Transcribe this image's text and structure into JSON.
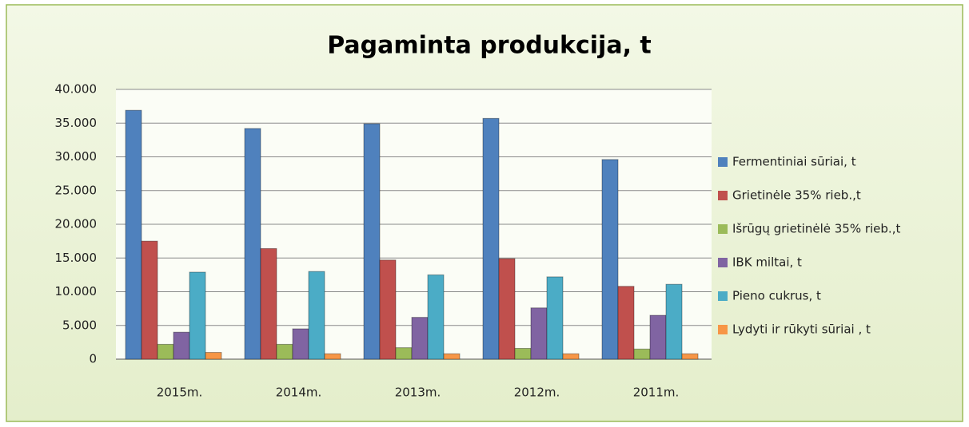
{
  "chart_data": {
    "type": "bar",
    "title": "Pagaminta produkcija, t",
    "categories": [
      "2015m.",
      "2014m.",
      "2013m.",
      "2012m.",
      "2011m."
    ],
    "series": [
      {
        "name": "Fermentiniai sūriai, t",
        "color": "#4f81bd",
        "values": [
          36900,
          34200,
          34900,
          35700,
          29600
        ]
      },
      {
        "name": "Grietinėle 35% rieb.,t",
        "color": "#c0504d",
        "values": [
          17500,
          16400,
          14700,
          14900,
          10800
        ]
      },
      {
        "name": "Išrūgų grietinėlė 35% rieb.,t",
        "color": "#9bbb59",
        "values": [
          2200,
          2200,
          1700,
          1600,
          1500
        ]
      },
      {
        "name": "IBK miltai, t",
        "color": "#8064a2",
        "values": [
          4000,
          4500,
          6200,
          7600,
          6500
        ]
      },
      {
        "name": "Pieno cukrus, t",
        "color": "#4bacc6",
        "values": [
          12900,
          13000,
          12500,
          12200,
          11100
        ]
      },
      {
        "name": "Lydyti  ir rūkyti sūriai , t",
        "color": "#f79646",
        "values": [
          1000,
          800,
          800,
          800,
          800
        ]
      }
    ],
    "ylim": [
      0,
      40000
    ],
    "yticks": [
      0,
      {
        "value": 5000,
        "label": "5.000"
      },
      {
        "value": 10000,
        "label": "10.000"
      },
      {
        "value": 15000,
        "label": "15.000"
      },
      {
        "value": 20000,
        "label": "20.000"
      },
      {
        "value": 25000,
        "label": "25.000"
      },
      {
        "value": 30000,
        "label": "30.000"
      },
      {
        "value": 35000,
        "label": "35.000"
      },
      {
        "value": 40000,
        "label": "40.000"
      }
    ],
    "grid": true,
    "legend": "right"
  }
}
